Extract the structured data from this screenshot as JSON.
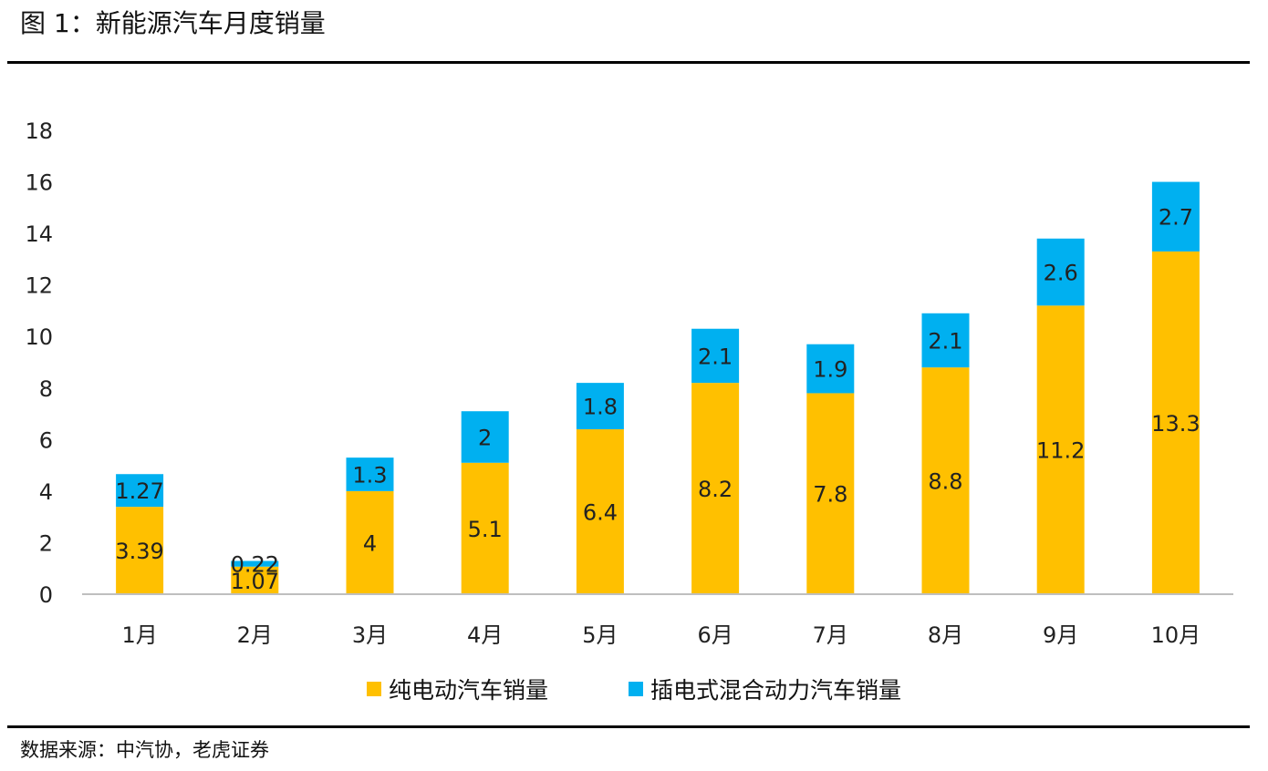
{
  "title": "图 1：新能源汽车月度销量",
  "source": "数据来源：中汽协，老虎证券",
  "colors": {
    "bev": "#FFC000",
    "phev": "#00B0F0"
  },
  "chart_data": {
    "type": "bar",
    "stacked": true,
    "categories": [
      "1月",
      "2月",
      "3月",
      "4月",
      "5月",
      "6月",
      "7月",
      "8月",
      "9月",
      "10月"
    ],
    "series": [
      {
        "name": "纯电动汽车销量",
        "values": [
          3.39,
          1.07,
          4,
          5.1,
          6.4,
          8.2,
          7.8,
          8.8,
          11.2,
          13.3
        ],
        "labels": [
          "3.39",
          "1.07",
          "4",
          "5.1",
          "6.4",
          "8.2",
          "7.8",
          "8.8",
          "11.2",
          "13.3"
        ]
      },
      {
        "name": "插电式混合动力汽车销量",
        "values": [
          1.27,
          0.22,
          1.3,
          2,
          1.8,
          2.1,
          1.9,
          2.1,
          2.6,
          2.7
        ],
        "labels": [
          "1.27",
          "0.22",
          "1.3",
          "2",
          "1.8",
          "2.1",
          "1.9",
          "2.1",
          "2.6",
          "2.7"
        ]
      }
    ],
    "ylim": [
      0,
      18
    ],
    "yticks": [
      "0",
      "2",
      "4",
      "6",
      "8",
      "10",
      "12",
      "14",
      "16",
      "18"
    ],
    "grid": false,
    "legend": "bottom-center"
  }
}
